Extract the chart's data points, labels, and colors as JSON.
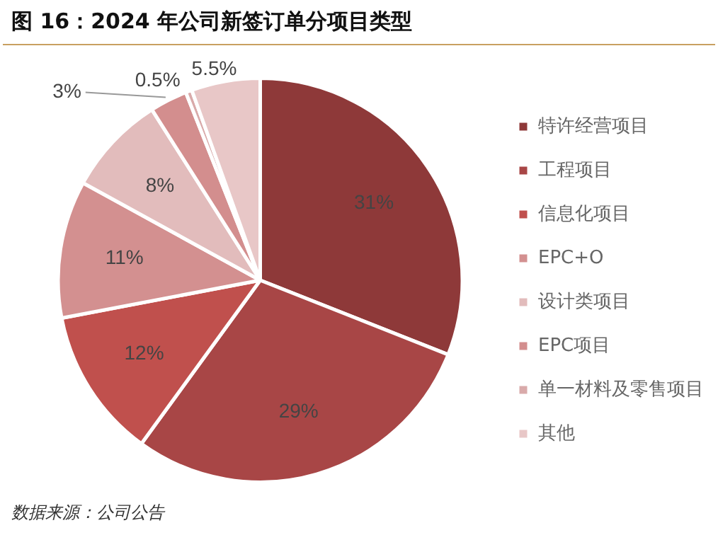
{
  "chart_data": {
    "type": "pie",
    "title": "图 16：2024 年公司新签订单分项目类型",
    "categories": [
      "特许经营项目",
      "工程项目",
      "信息化项目",
      "EPC+O",
      "设计类项目",
      "EPC项目",
      "单一材料及零售项目",
      "其他"
    ],
    "values": [
      31,
      29,
      12,
      11,
      8,
      3,
      0.5,
      5.5
    ],
    "colors": [
      "#8e3939",
      "#a84646",
      "#c0504d",
      "#d39090",
      "#e2bcbc",
      "#d38e8e",
      "#d9aaaa",
      "#e8c7c7"
    ],
    "value_labels": [
      "31%",
      "29%",
      "12%",
      "11%",
      "8%",
      "3%",
      "0.5%",
      "5.5%"
    ],
    "legend": "right",
    "annotations": [
      "数据来源：公司公告"
    ]
  }
}
